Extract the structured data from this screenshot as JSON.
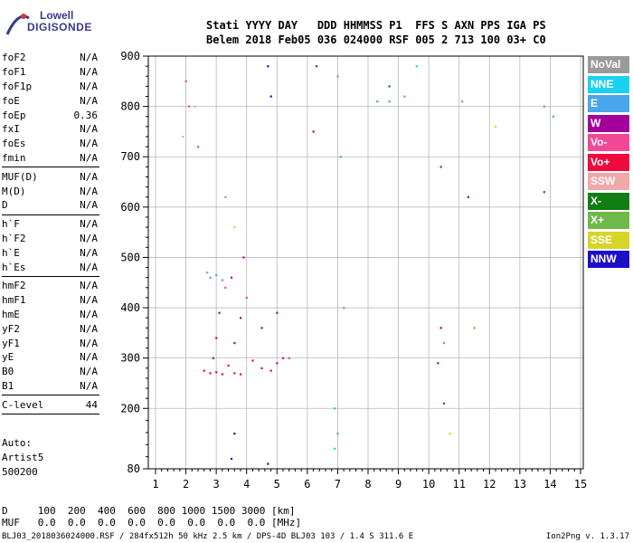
{
  "logo": {
    "line1": "Lowell",
    "line2": "DIGISONDE"
  },
  "header": {
    "line1": "Stati YYYY DAY   DDD HHMMSS P1  FFS S AXN PPS IGA PS",
    "line2": "Belem 2018 Feb05 036 024000 RSF 005 2 713 100 03+ C0"
  },
  "params": {
    "group1": [
      {
        "label": "foF2",
        "value": "N/A"
      },
      {
        "label": "foF1",
        "value": "N/A"
      },
      {
        "label": "foF1p",
        "value": "N/A"
      },
      {
        "label": "foE",
        "value": "N/A"
      },
      {
        "label": "foEp",
        "value": "0.36"
      },
      {
        "label": "fxI",
        "value": "N/A"
      },
      {
        "label": "foEs",
        "value": "N/A"
      },
      {
        "label": "fmin",
        "value": "N/A"
      }
    ],
    "group2": [
      {
        "label": "MUF(D)",
        "value": "N/A"
      },
      {
        "label": "M(D)",
        "value": "N/A"
      },
      {
        "label": "D",
        "value": "N/A"
      }
    ],
    "group3": [
      {
        "label": "h`F",
        "value": "N/A"
      },
      {
        "label": "h`F2",
        "value": "N/A"
      },
      {
        "label": "h`E",
        "value": "N/A"
      },
      {
        "label": "h`Es",
        "value": "N/A"
      }
    ],
    "group4": [
      {
        "label": "hmF2",
        "value": "N/A"
      },
      {
        "label": "hmF1",
        "value": "N/A"
      },
      {
        "label": "hmE",
        "value": "N/A"
      },
      {
        "label": "yF2",
        "value": "N/A"
      },
      {
        "label": "yF1",
        "value": "N/A"
      },
      {
        "label": "yE",
        "value": "N/A"
      },
      {
        "label": "B0",
        "value": "N/A"
      },
      {
        "label": "B1",
        "value": "N/A"
      }
    ],
    "clevel": {
      "label": "C-level",
      "value": "44"
    }
  },
  "auto": {
    "line1": "Auto:",
    "line2": "Artist5",
    "line3": "500200"
  },
  "dmuf": {
    "d_row": "D     100  200  400  600  800 1000 1500 3000 [km]",
    "muf_row": "MUF   0.0  0.0  0.0  0.0  0.0  0.0  0.0  0.0 [MHz]"
  },
  "footer": "BLJ03_2018036024000.RSF / 284fx512h 50 kHz 2.5 km / DPS-4D BLJ03 103 / 1.4 S 311.6 E",
  "version": "Ion2Png v. 1.3.17",
  "legend": [
    {
      "label": "NoVal",
      "color": "#9a9a9a"
    },
    {
      "label": "NNE",
      "color": "#19d2f0"
    },
    {
      "label": "E",
      "color": "#4aa6ea"
    },
    {
      "label": "W",
      "color": "#a3009c"
    },
    {
      "label": "Vo-",
      "color": "#f24896"
    },
    {
      "label": "Vo+",
      "color": "#ee0a3c"
    },
    {
      "label": "SSW",
      "color": "#f0a8a8"
    },
    {
      "label": "X-",
      "color": "#127d12"
    },
    {
      "label": "X+",
      "color": "#6fb84a"
    },
    {
      "label": "SSE",
      "color": "#d6d62a"
    },
    {
      "label": "NNW",
      "color": "#1c10c6"
    }
  ],
  "chart_data": {
    "type": "scatter",
    "title": "",
    "xlabel": "",
    "ylabel": "",
    "xlim": [
      0.8,
      15
    ],
    "ylim": [
      80,
      900
    ],
    "x_ticks": [
      1,
      2,
      3,
      4,
      5,
      6,
      7,
      8,
      9,
      10,
      11,
      12,
      13,
      14,
      15
    ],
    "y_ticks": [
      80,
      200,
      300,
      400,
      500,
      600,
      700,
      800,
      900
    ],
    "grid": true,
    "legend_placement": "right",
    "series": [
      {
        "name": "Vo+",
        "color": "#ee0a3c",
        "points": [
          [
            2.8,
            270
          ],
          [
            3.0,
            272
          ],
          [
            3.2,
            268
          ],
          [
            3.6,
            270
          ],
          [
            3.8,
            268
          ],
          [
            4.5,
            280
          ],
          [
            4.8,
            275
          ],
          [
            5.0,
            290
          ],
          [
            5.2,
            300
          ],
          [
            2.6,
            275
          ],
          [
            3.4,
            285
          ],
          [
            4.2,
            295
          ]
        ]
      },
      {
        "name": "W",
        "color": "#a3009c",
        "points": [
          [
            2.9,
            300
          ],
          [
            3.0,
            340
          ],
          [
            3.1,
            390
          ],
          [
            3.6,
            330
          ],
          [
            3.8,
            380
          ],
          [
            4.5,
            360
          ],
          [
            5.0,
            390
          ],
          [
            6.3,
            880
          ],
          [
            6.2,
            750
          ],
          [
            10.4,
            360
          ],
          [
            10.3,
            290
          ],
          [
            11.3,
            620
          ],
          [
            3.5,
            460
          ],
          [
            3.9,
            500
          ]
        ]
      },
      {
        "name": "E",
        "color": "#4aa6ea",
        "points": [
          [
            2.8,
            460
          ],
          [
            3.0,
            465
          ],
          [
            3.2,
            455
          ],
          [
            7.0,
            860
          ],
          [
            7.1,
            700
          ],
          [
            7.2,
            400
          ],
          [
            8.3,
            810
          ],
          [
            8.7,
            810
          ],
          [
            9.2,
            820
          ],
          [
            6.9,
            200
          ],
          [
            7.0,
            150
          ],
          [
            13.8,
            800
          ],
          [
            14.1,
            780
          ]
        ]
      },
      {
        "name": "Vo-",
        "color": "#f24896",
        "points": [
          [
            2.0,
            850
          ],
          [
            2.1,
            800
          ],
          [
            2.4,
            720
          ],
          [
            3.3,
            440
          ],
          [
            4.0,
            420
          ],
          [
            5.4,
            300
          ]
        ]
      },
      {
        "name": "NNW",
        "color": "#1c10c6",
        "points": [
          [
            3.5,
            100
          ],
          [
            3.6,
            150
          ],
          [
            4.7,
            880
          ],
          [
            4.8,
            820
          ],
          [
            4.7,
            90
          ]
        ]
      },
      {
        "name": "X-",
        "color": "#127d12",
        "points": [
          [
            8.7,
            840
          ],
          [
            10.4,
            680
          ],
          [
            10.5,
            210
          ],
          [
            13.8,
            630
          ]
        ]
      },
      {
        "name": "X+",
        "color": "#6fb84a",
        "points": [
          [
            2.7,
            470
          ],
          [
            10.5,
            330
          ],
          [
            11.5,
            360
          ]
        ]
      },
      {
        "name": "SSE",
        "color": "#d6d62a",
        "points": [
          [
            12.2,
            760
          ],
          [
            10.7,
            150
          ],
          [
            3.6,
            560
          ]
        ]
      },
      {
        "name": "NNE",
        "color": "#19d2f0",
        "points": [
          [
            9.6,
            880
          ],
          [
            6.9,
            120
          ]
        ]
      },
      {
        "name": "SSW",
        "color": "#f0a8a8",
        "points": [
          [
            2.3,
            800
          ],
          [
            1.9,
            740
          ]
        ]
      },
      {
        "name": "NoVal",
        "color": "#9a9a9a",
        "points": [
          [
            3.3,
            620
          ],
          [
            11.1,
            810
          ]
        ]
      }
    ]
  }
}
